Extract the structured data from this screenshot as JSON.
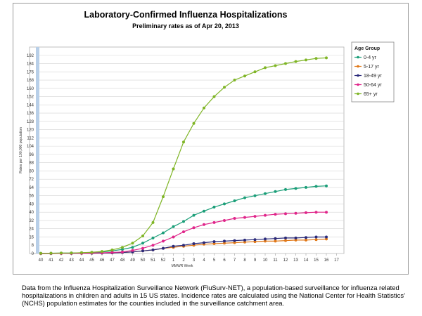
{
  "chart_data": {
    "type": "line",
    "title": "Laboratory-Confirmed Influenza Hospitalizations",
    "subtitle": "Preliminary rates as of Apr 20, 2013",
    "xlabel": "MMWR Week",
    "ylabel": "Rates per 100,000 population",
    "categories": [
      "40",
      "41",
      "42",
      "43",
      "44",
      "45",
      "46",
      "47",
      "48",
      "49",
      "50",
      "51",
      "52",
      "1",
      "2",
      "3",
      "4",
      "5",
      "6",
      "7",
      "8",
      "9",
      "10",
      "11",
      "12",
      "13",
      "14",
      "15",
      "16",
      "17"
    ],
    "yticks": [
      0,
      8,
      16,
      24,
      32,
      40,
      48,
      56,
      64,
      72,
      80,
      88,
      96,
      104,
      112,
      120,
      128,
      136,
      144,
      152,
      160,
      168,
      176,
      184,
      192
    ],
    "ylim": [
      0,
      200
    ],
    "grid": true,
    "legend_title": "Age Group",
    "legend_position": "right",
    "series": [
      {
        "name": "0-4 yr",
        "color": "#1a9e78",
        "values": [
          0.2,
          0.3,
          0.4,
          0.5,
          0.7,
          1.0,
          1.5,
          2.5,
          4,
          6,
          10,
          15,
          20,
          26,
          31,
          37,
          41,
          45,
          48,
          51,
          54,
          56,
          58,
          60,
          62,
          63,
          64,
          65,
          65.5,
          null
        ]
      },
      {
        "name": "5-17 yr",
        "color": "#e07818",
        "values": [
          0,
          0,
          0.1,
          0.1,
          0.2,
          0.3,
          0.4,
          0.6,
          1,
          1.5,
          2.5,
          3.5,
          5,
          6,
          7,
          8,
          9,
          9.5,
          10,
          10.5,
          11,
          11.5,
          12,
          12,
          12.5,
          13,
          13,
          13.5,
          14,
          null
        ]
      },
      {
        "name": "18-49 yr",
        "color": "#2a2a7a",
        "values": [
          0,
          0,
          0.1,
          0.1,
          0.2,
          0.3,
          0.4,
          0.6,
          1,
          1.5,
          2.5,
          3.5,
          5,
          7,
          8,
          9.5,
          10.5,
          11.5,
          12,
          12.5,
          13,
          13.5,
          14,
          14.5,
          15,
          15,
          15.5,
          16,
          16,
          null
        ]
      },
      {
        "name": "50-64 yr",
        "color": "#e0258a",
        "values": [
          0,
          0.1,
          0.1,
          0.2,
          0.3,
          0.5,
          0.7,
          1,
          1.5,
          3,
          5,
          8,
          12,
          16,
          21,
          25,
          28,
          30,
          32,
          34,
          35,
          36,
          37,
          38,
          38.5,
          39,
          39.5,
          40,
          40,
          null
        ]
      },
      {
        "name": "65+ yr",
        "color": "#7fb526",
        "values": [
          0.2,
          0.3,
          0.4,
          0.5,
          0.8,
          1.2,
          2,
          3.5,
          6,
          10,
          17,
          30,
          55,
          82,
          108,
          126,
          141,
          152,
          161,
          168,
          172,
          176,
          180,
          182,
          184,
          186,
          187.5,
          189,
          189.5,
          null
        ]
      }
    ]
  },
  "caption": "Data from the Influenza Hospitalization Surveillance Network (FluSurv-NET), a population-based surveillance for influenza related hospitalizations in children and adults in 15 US states.  Incidence rates are calculated using the National Center for Health Statistics’ (NCHS) population estimates for the counties included in the surveillance catchment area."
}
